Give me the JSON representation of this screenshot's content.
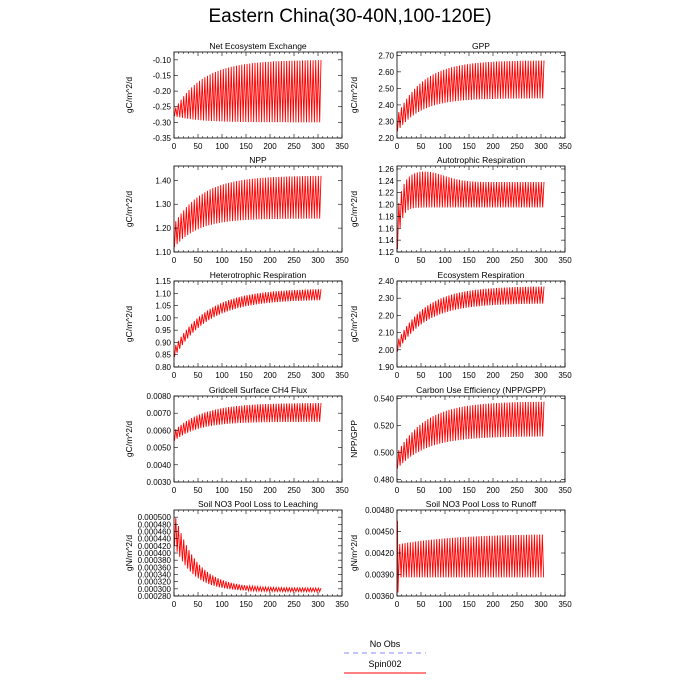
{
  "figure": {
    "title": "Eastern China(30-40N,100-120E)"
  },
  "legend": {
    "entries": [
      {
        "name": "No Obs",
        "color": "#8888ff",
        "dash": "dashed"
      },
      {
        "name": "Spin002",
        "color": "#ff0000",
        "dash": "solid"
      }
    ]
  },
  "chart_data": [
    {
      "type": "line",
      "title": "Net Ecosystem Exchange",
      "ylabel": "gC/m^2/d",
      "xlim": [
        0,
        350
      ],
      "xticks": [
        0,
        50,
        100,
        150,
        200,
        250,
        300,
        350
      ],
      "ylim": [
        -0.35,
        -0.075
      ],
      "yticks": [
        -0.35,
        -0.3,
        -0.25,
        -0.2,
        -0.15,
        -0.1
      ],
      "ytick_labels": [
        "-0.35",
        "-0.30",
        "-0.25",
        "-0.20",
        "-0.15",
        "-0.10"
      ],
      "series": [
        {
          "color": "#ff0000",
          "x_start": 1,
          "x_end": 307,
          "period": 5.5,
          "lower": {
            "start": -0.28,
            "end": -0.3,
            "tau": 50
          },
          "upper": {
            "start": -0.26,
            "end": -0.1,
            "tau": 60
          }
        }
      ]
    },
    {
      "type": "line",
      "title": "GPP",
      "ylabel": "gC/m^2/d",
      "xlim": [
        0,
        350
      ],
      "xticks": [
        0,
        50,
        100,
        150,
        200,
        250,
        300,
        350
      ],
      "ylim": [
        2.2,
        2.72
      ],
      "yticks": [
        2.2,
        2.3,
        2.4,
        2.5,
        2.6,
        2.7
      ],
      "ytick_labels": [
        "2.20",
        "2.30",
        "2.40",
        "2.50",
        "2.60",
        "2.70"
      ],
      "series": [
        {
          "color": "#ff0000",
          "x_start": 1,
          "x_end": 307,
          "period": 5.5,
          "lower": {
            "start": 2.24,
            "end": 2.44,
            "tau": 50
          },
          "upper": {
            "start": 2.34,
            "end": 2.67,
            "tau": 55
          }
        }
      ]
    },
    {
      "type": "line",
      "title": "NPP",
      "ylabel": "gC/m^2/d",
      "xlim": [
        0,
        350
      ],
      "xticks": [
        0,
        50,
        100,
        150,
        200,
        250,
        300,
        350
      ],
      "ylim": [
        1.1,
        1.46
      ],
      "yticks": [
        1.1,
        1.2,
        1.3,
        1.4
      ],
      "ytick_labels": [
        "1.10",
        "1.20",
        "1.30",
        "1.40"
      ],
      "series": [
        {
          "color": "#ff0000",
          "x_start": 1,
          "x_end": 307,
          "period": 5.5,
          "lower": {
            "start": 1.12,
            "end": 1.24,
            "tau": 50
          },
          "upper": {
            "start": 1.22,
            "end": 1.42,
            "tau": 60
          }
        }
      ]
    },
    {
      "type": "line",
      "title": "Autotrophic Respiration",
      "ylabel": "gC/m^2/d",
      "xlim": [
        0,
        350
      ],
      "xticks": [
        0,
        50,
        100,
        150,
        200,
        250,
        300,
        350
      ],
      "ylim": [
        1.12,
        1.265
      ],
      "yticks": [
        1.12,
        1.14,
        1.16,
        1.18,
        1.2,
        1.22,
        1.24,
        1.26
      ],
      "ytick_labels": [
        "1.12",
        "1.14",
        "1.16",
        "1.18",
        "1.20",
        "1.22",
        "1.24",
        "1.26"
      ],
      "series": [
        {
          "color": "#ff0000",
          "x_start": 1,
          "x_end": 307,
          "period": 5.5,
          "lower": {
            "start": 1.125,
            "end": 1.195,
            "tau": 8
          },
          "upper": {
            "start": 1.18,
            "end": 1.238,
            "tau": 10,
            "peak": 0.018,
            "peak_x": 55,
            "peak_w": 60
          }
        }
      ]
    },
    {
      "type": "line",
      "title": "Heterotrophic Respiration",
      "ylabel": "gC/m^2/d",
      "xlim": [
        0,
        350
      ],
      "xticks": [
        0,
        50,
        100,
        150,
        200,
        250,
        300,
        350
      ],
      "ylim": [
        0.8,
        1.15
      ],
      "yticks": [
        0.8,
        0.85,
        0.9,
        0.95,
        1.0,
        1.05,
        1.1,
        1.15
      ],
      "ytick_labels": [
        "0.80",
        "0.85",
        "0.90",
        "0.95",
        "1.00",
        "1.05",
        "1.10",
        "1.15"
      ],
      "series": [
        {
          "color": "#ff0000",
          "x_start": 1,
          "x_end": 307,
          "period": 5.5,
          "lower": {
            "start": 0.84,
            "end": 1.075,
            "tau": 70
          },
          "upper": {
            "start": 0.88,
            "end": 1.12,
            "tau": 70
          }
        }
      ]
    },
    {
      "type": "line",
      "title": "Ecosystem Respiration",
      "ylabel": "gC/m^2/d",
      "xlim": [
        0,
        350
      ],
      "xticks": [
        0,
        50,
        100,
        150,
        200,
        250,
        300,
        350
      ],
      "ylim": [
        1.9,
        2.4
      ],
      "yticks": [
        1.9,
        2.0,
        2.1,
        2.2,
        2.3,
        2.4
      ],
      "ytick_labels": [
        "1.90",
        "2.00",
        "2.10",
        "2.20",
        "2.30",
        "2.40"
      ],
      "series": [
        {
          "color": "#ff0000",
          "x_start": 1,
          "x_end": 307,
          "period": 5.5,
          "lower": {
            "start": 1.99,
            "end": 2.27,
            "tau": 60
          },
          "upper": {
            "start": 2.05,
            "end": 2.37,
            "tau": 60
          }
        }
      ]
    },
    {
      "type": "line",
      "title": "Gridcell Surface CH4 Flux",
      "ylabel": "gC/m^2/d",
      "xlim": [
        0,
        350
      ],
      "xticks": [
        0,
        50,
        100,
        150,
        200,
        250,
        300,
        350
      ],
      "ylim": [
        0.003,
        0.008
      ],
      "yticks": [
        0.003,
        0.004,
        0.005,
        0.006,
        0.007,
        0.008
      ],
      "ytick_labels": [
        "0.0030",
        "0.0040",
        "0.0050",
        "0.0060",
        "0.0070",
        "0.0080"
      ],
      "series": [
        {
          "color": "#ff0000",
          "x_start": 1,
          "x_end": 307,
          "period": 5.5,
          "lower": {
            "start": 0.0054,
            "end": 0.0065,
            "tau": 50
          },
          "upper": {
            "start": 0.006,
            "end": 0.0076,
            "tau": 60
          }
        }
      ]
    },
    {
      "type": "line",
      "title": "Carbon Use Efficiency (NPP/GPP)",
      "ylabel": "NPP/GPP",
      "xlim": [
        0,
        350
      ],
      "xticks": [
        0,
        50,
        100,
        150,
        200,
        250,
        300,
        350
      ],
      "ylim": [
        0.478,
        0.542
      ],
      "yticks": [
        0.48,
        0.5,
        0.52,
        0.54
      ],
      "ytick_labels": [
        "0.480",
        "0.500",
        "0.520",
        "0.540"
      ],
      "series": [
        {
          "color": "#ff0000",
          "x_start": 1,
          "x_end": 307,
          "period": 5.5,
          "lower": {
            "start": 0.488,
            "end": 0.512,
            "tau": 60
          },
          "upper": {
            "start": 0.5,
            "end": 0.538,
            "tau": 60
          }
        }
      ]
    },
    {
      "type": "line",
      "title": "Soil NO3 Pool Loss to Leaching",
      "ylabel": "gN/m^2/d",
      "xlim": [
        0,
        350
      ],
      "xticks": [
        0,
        50,
        100,
        150,
        200,
        250,
        300,
        350
      ],
      "ylim": [
        0.00028,
        0.00052
      ],
      "yticks": [
        0.00028,
        0.0003,
        0.00032,
        0.00034,
        0.00036,
        0.00038,
        0.0004,
        0.00042,
        0.00044,
        0.00046,
        0.00048,
        0.0005
      ],
      "ytick_labels": [
        "0.000280",
        "0.000300",
        "0.000320",
        "0.000340",
        "0.000360",
        "0.000380",
        "0.000400",
        "0.000420",
        "0.000440",
        "0.000460",
        "0.000480",
        "0.000500"
      ],
      "series": [
        {
          "color": "#ff0000",
          "x_start": 1,
          "x_end": 307,
          "period": 5.5,
          "lower": {
            "start": 0.00042,
            "end": 0.000292,
            "tau": 40
          },
          "upper": {
            "start": 0.00051,
            "end": 0.000302,
            "tau": 45
          }
        }
      ]
    },
    {
      "type": "line",
      "title": "Soil NO3 Pool Loss to Runoff",
      "ylabel": "gN/m^2/d",
      "xlim": [
        0,
        350
      ],
      "xticks": [
        0,
        50,
        100,
        150,
        200,
        250,
        300,
        350
      ],
      "ylim": [
        0.0036,
        0.0048
      ],
      "yticks": [
        0.0036,
        0.0039,
        0.0042,
        0.0045,
        0.0048
      ],
      "ytick_labels": [
        "0.00360",
        "0.00390",
        "0.00420",
        "0.00450",
        "0.00480"
      ],
      "series": [
        {
          "color": "#ff0000",
          "x_start": 1,
          "x_end": 307,
          "period": 5.5,
          "lower": {
            "start": 0.00386,
            "end": 0.00386,
            "tau": 50
          },
          "upper": {
            "start": 0.00432,
            "end": 0.00447,
            "tau": 120
          },
          "spike": {
            "x": 2,
            "value": 0.00465,
            "low": 0.00365
          }
        }
      ]
    }
  ]
}
